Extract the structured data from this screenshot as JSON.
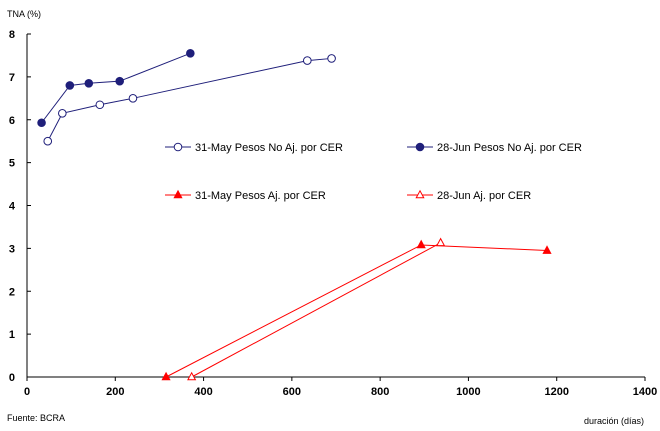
{
  "chart_data": {
    "type": "line",
    "title": "",
    "xlabel": "duración (días)",
    "ylabel": "TNA (%)",
    "source": "Fuente: BCRA",
    "xlim": [
      0,
      1400
    ],
    "ylim": [
      0,
      8
    ],
    "xticks": [
      0,
      200,
      400,
      600,
      800,
      1000,
      1200,
      1400
    ],
    "yticks": [
      0,
      1,
      2,
      3,
      4,
      5,
      6,
      7,
      8
    ],
    "grid": false,
    "legend_position": "center-right",
    "series": [
      {
        "name": "31-May Pesos No Aj. por CER",
        "color": "#1f1f7a",
        "marker": "circle-open",
        "points": [
          [
            47,
            5.5
          ],
          [
            80,
            6.15
          ],
          [
            165,
            6.35
          ],
          [
            240,
            6.5
          ],
          [
            635,
            7.38
          ],
          [
            690,
            7.43
          ]
        ]
      },
      {
        "name": "28-Jun Pesos No Aj. por CER",
        "color": "#1f1f7a",
        "marker": "circle-filled",
        "points": [
          [
            33,
            5.93
          ],
          [
            97,
            6.8
          ],
          [
            140,
            6.85
          ],
          [
            210,
            6.9
          ],
          [
            370,
            7.55
          ]
        ]
      },
      {
        "name": "31-May Pesos Aj. por CER",
        "color": "#ff0000",
        "marker": "triangle-filled",
        "points": [
          [
            315,
            0.0
          ],
          [
            893,
            3.08
          ],
          [
            1178,
            2.95
          ]
        ]
      },
      {
        "name": "28-Jun Aj. por CER",
        "color": "#ff0000",
        "marker": "triangle-open",
        "points": [
          [
            373,
            0.0
          ],
          [
            937,
            3.13
          ]
        ]
      }
    ]
  }
}
